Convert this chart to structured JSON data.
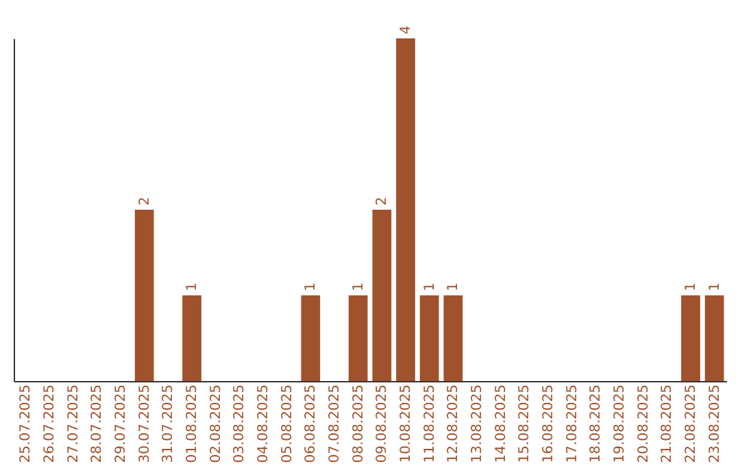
{
  "chart_data": {
    "type": "bar",
    "categories": [
      "25.07.2025",
      "26.07.2025",
      "27.07.2025",
      "28.07.2025",
      "29.07.2025",
      "30.07.2025",
      "31.07.2025",
      "01.08.2025",
      "02.08.2025",
      "03.08.2025",
      "04.08.2025",
      "05.08.2025",
      "06.08.2025",
      "07.08.2025",
      "08.08.2025",
      "09.08.2025",
      "10.08.2025",
      "11.08.2025",
      "12.08.2025",
      "13.08.2025",
      "14.08.2025",
      "15.08.2025",
      "16.08.2025",
      "17.08.2025",
      "18.08.2025",
      "19.08.2025",
      "20.08.2025",
      "21.08.2025",
      "22.08.2025",
      "23.08.2025"
    ],
    "values": [
      0,
      0,
      0,
      0,
      0,
      2,
      0,
      1,
      0,
      0,
      0,
      0,
      1,
      0,
      1,
      2,
      4,
      1,
      1,
      0,
      0,
      0,
      0,
      0,
      0,
      0,
      0,
      0,
      1,
      1
    ],
    "value_labels": [
      null,
      null,
      null,
      null,
      null,
      "2",
      null,
      "1",
      null,
      null,
      null,
      null,
      "1",
      null,
      "1",
      "2",
      "4",
      "1",
      "1",
      null,
      null,
      null,
      null,
      null,
      null,
      null,
      null,
      null,
      "1",
      "1"
    ],
    "color": "#a0522d",
    "ylim": [
      0,
      4
    ],
    "grid": false,
    "tick_labels": "x"
  }
}
